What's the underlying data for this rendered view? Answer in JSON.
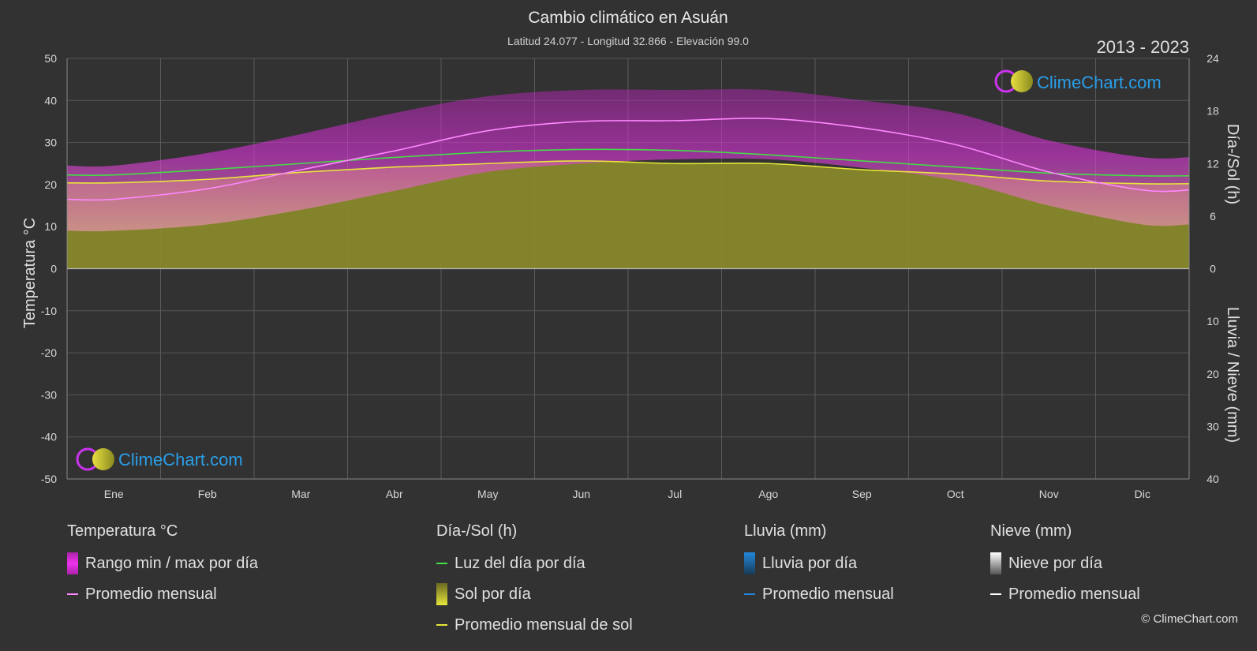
{
  "title": "Cambio climático en Asuán",
  "subtitle": "Latitud 24.077 - Longitud 32.866 - Elevación 99.0",
  "period": "2013 - 2023",
  "watermark": "ClimeChart.com",
  "copyright": "© ClimeChart.com",
  "colors": {
    "background": "#323232",
    "temp_range": "#cc22cc",
    "temp_avg": "#ff88ff",
    "daylight": "#44dd44",
    "sunshine": "#8a8a2a",
    "sunshine_avg": "#e6e63a",
    "rain": "#2288dd",
    "snow": "#ffffff"
  },
  "chart_data": {
    "type": "area",
    "x": [
      "Ene",
      "Feb",
      "Mar",
      "Abr",
      "May",
      "Jun",
      "Jul",
      "Ago",
      "Sep",
      "Oct",
      "Nov",
      "Dic"
    ],
    "y_left": {
      "label": "Temperatura °C",
      "lim": [
        -50,
        50
      ],
      "ticks": [
        50,
        40,
        30,
        20,
        10,
        0,
        -10,
        -20,
        -30,
        -40,
        -50
      ]
    },
    "y_right_top": {
      "label": "Día-/Sol (h)",
      "lim": [
        0,
        24
      ],
      "ticks": [
        24,
        18,
        12,
        6,
        0
      ]
    },
    "y_right_bottom": {
      "label": "Lluvia / Nieve (mm)",
      "lim": [
        0,
        40
      ],
      "ticks": [
        0,
        10,
        20,
        30,
        40
      ]
    },
    "series": [
      {
        "name": "Promedio mensual",
        "group": "Temperatura °C",
        "axis": "temp",
        "values": [
          16.5,
          19,
          23.5,
          28,
          32.8,
          35,
          35.2,
          35.7,
          33.5,
          29.5,
          23,
          18.7
        ]
      },
      {
        "name": "Rango min / max por día (max)",
        "group": "Temperatura °C",
        "axis": "temp",
        "values": [
          24.5,
          27.5,
          32,
          37,
          41,
          42.5,
          42.5,
          42.5,
          40,
          37,
          30.5,
          26.5
        ]
      },
      {
        "name": "Rango min / max por día (min)",
        "group": "Temperatura °C",
        "axis": "temp",
        "values": [
          9,
          10.5,
          14,
          18.5,
          23,
          25,
          26,
          26,
          24,
          21,
          15,
          10.5
        ]
      },
      {
        "name": "Luz del día por día",
        "group": "Día-/Sol (h)",
        "axis": "hours",
        "values": [
          10.7,
          11.3,
          12,
          12.7,
          13.3,
          13.6,
          13.5,
          13,
          12.3,
          11.6,
          10.9,
          10.6
        ]
      },
      {
        "name": "Sol por día",
        "group": "Día-/Sol (h)",
        "axis": "hours",
        "values": [
          9.8,
          10.2,
          11,
          11.6,
          12,
          12.3,
          12,
          12,
          11.3,
          10.8,
          10,
          9.7
        ]
      },
      {
        "name": "Promedio mensual de sol",
        "group": "Día-/Sol (h)",
        "axis": "hours",
        "values": [
          9.8,
          10.2,
          11,
          11.6,
          12,
          12.3,
          12,
          12,
          11.3,
          10.8,
          10,
          9.7
        ]
      },
      {
        "name": "Lluvia por día",
        "group": "Lluvia (mm)",
        "axis": "rain",
        "values": [
          0,
          0,
          0,
          0,
          0,
          0,
          0,
          0,
          0,
          0,
          0,
          0
        ]
      },
      {
        "name": "Nieve por día",
        "group": "Nieve (mm)",
        "axis": "rain",
        "values": [
          0,
          0,
          0,
          0,
          0,
          0,
          0,
          0,
          0,
          0,
          0,
          0
        ]
      }
    ]
  },
  "legend": {
    "temp": {
      "header": "Temperatura °C",
      "items": [
        "Rango min / max por día",
        "Promedio mensual"
      ]
    },
    "sun": {
      "header": "Día-/Sol (h)",
      "items": [
        "Luz del día por día",
        "Sol por día",
        "Promedio mensual de sol"
      ]
    },
    "rain": {
      "header": "Lluvia (mm)",
      "items": [
        "Lluvia por día",
        "Promedio mensual"
      ]
    },
    "snow": {
      "header": "Nieve (mm)",
      "items": [
        "Nieve por día",
        "Promedio mensual"
      ]
    }
  }
}
